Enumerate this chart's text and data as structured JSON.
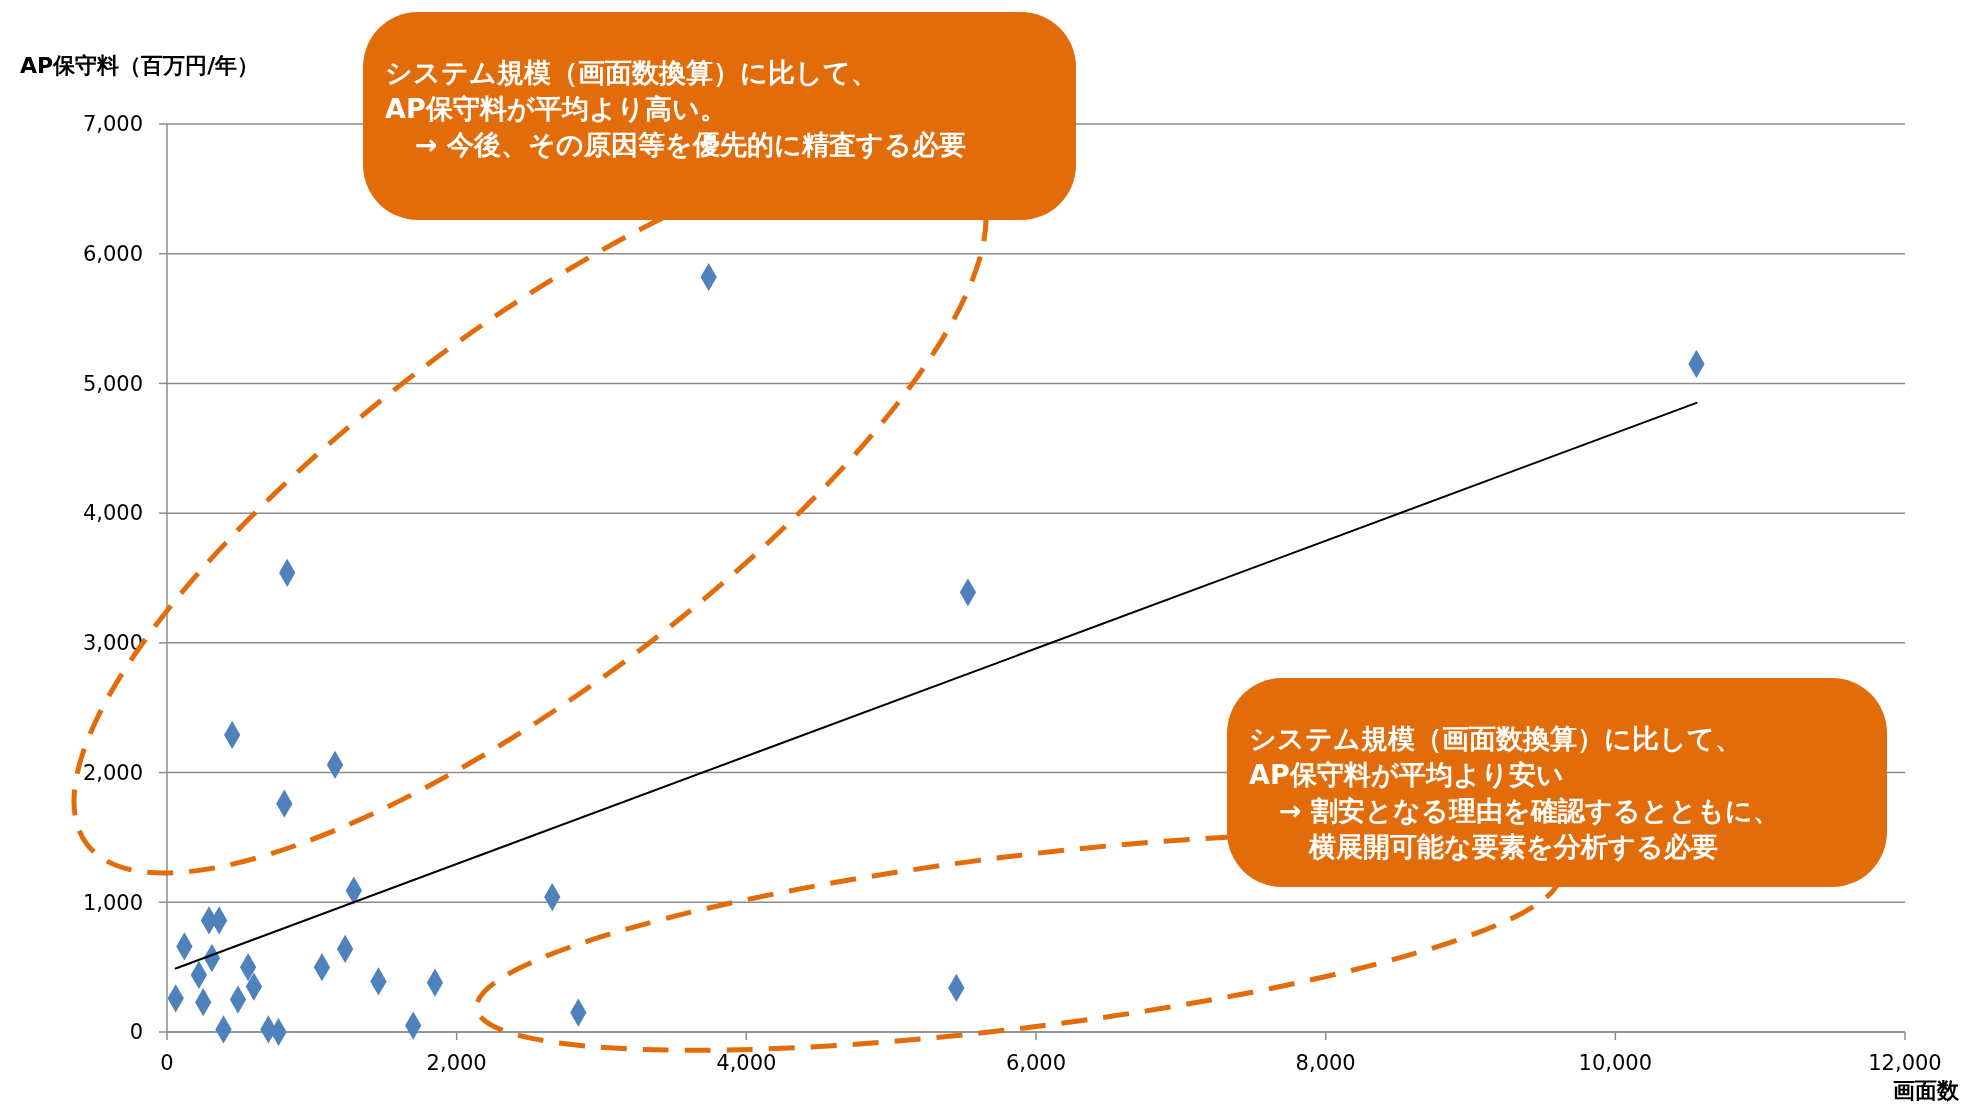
{
  "chart_data": {
    "type": "scatter",
    "xlabel": "画面数",
    "ylabel": "AP保守料（百万円/年）",
    "xlim": [
      0,
      12000
    ],
    "ylim": [
      0,
      7000
    ],
    "xticks": [
      0,
      {
        "value": 2000,
        "label": "2,000"
      },
      {
        "value": 4000,
        "label": "4,000"
      },
      {
        "value": 6000,
        "label": "6,000"
      },
      {
        "value": 8000,
        "label": "8,000"
      },
      {
        "value": 10000,
        "label": "10,000"
      },
      {
        "value": 12000,
        "label": "12,000"
      }
    ],
    "yticks": [
      0,
      {
        "value": 1000,
        "label": "1,000"
      },
      {
        "value": 2000,
        "label": "2,000"
      },
      {
        "value": 3000,
        "label": "3,000"
      },
      {
        "value": 4000,
        "label": "4,000"
      },
      {
        "value": 5000,
        "label": "5,000"
      },
      {
        "value": 6000,
        "label": "6,000"
      },
      {
        "value": 7000,
        "label": "7,000"
      }
    ],
    "grid": "y",
    "marker": "diamond",
    "series": [
      {
        "color": "#4f81bd",
        "x": [
          450,
          1160,
          810,
          1290,
          2660,
          290,
          360,
          120,
          310,
          220,
          560,
          1230,
          1070,
          600,
          60,
          250,
          490,
          1460,
          1850,
          2840,
          390,
          700,
          770,
          1700,
          830,
          3740,
          5530,
          5450,
          10560
        ],
        "values": [
          2290,
          2060,
          1760,
          1090,
          1040,
          860,
          860,
          660,
          570,
          440,
          500,
          640,
          500,
          350,
          260,
          230,
          250,
          390,
          380,
          150,
          20,
          20,
          0,
          50,
          3540,
          5820,
          3390,
          340,
          5150
        ]
      },
      {
        "type": "line",
        "marker": "none",
        "color": "#000000",
        "x": [
          60,
          10560
        ],
        "values": [
          490,
          4850
        ]
      }
    ],
    "annotations": [
      "システム規模（画面数換算）に比して、",
      "AP保守料が平均より高い。",
      "→ 今後、その原因等を優先的に精査する必要",
      "システム規模（画面数換算）に比して、",
      "AP保守料が平均より安い",
      "→ 割安となる理由を確認するとともに、",
      "横展開可能な要素を分析する必要"
    ]
  }
}
